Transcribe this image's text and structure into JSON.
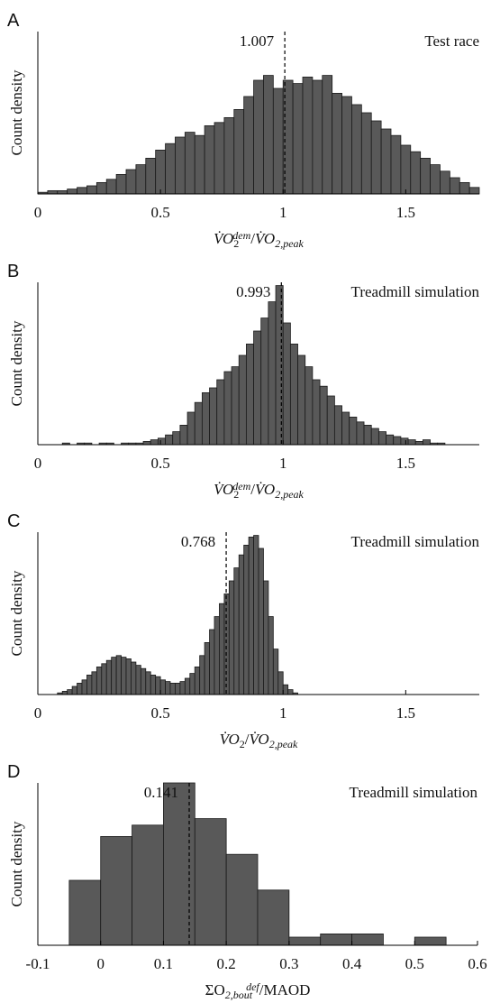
{
  "chart_data": [
    {
      "type": "histogram",
      "panel": "A",
      "note": "Test race",
      "ylabel": "Count density",
      "xlabel": [
        {
          "text": "V̇O",
          "style": "italic"
        },
        {
          "text": "2",
          "shift": "sub"
        },
        {
          "text": "dem",
          "shift": "sup",
          "style": "italic"
        },
        {
          "text": "/"
        },
        {
          "text": "V̇O",
          "style": "italic"
        },
        {
          "text": "2,peak",
          "shift": "sub",
          "style": "italic"
        }
      ],
      "median": 1.007,
      "color": "#595959",
      "xlim": [
        0,
        1.8
      ],
      "ylim": [
        0,
        100
      ],
      "xticks": [
        0,
        0.5,
        1,
        1.5
      ],
      "bins": [
        0,
        0.04,
        0.08,
        0.12,
        0.16,
        0.2,
        0.24,
        0.28,
        0.32,
        0.36,
        0.4,
        0.44,
        0.48,
        0.52,
        0.56,
        0.6,
        0.64,
        0.68,
        0.72,
        0.76,
        0.8,
        0.84,
        0.88,
        0.92,
        0.96,
        1,
        1.04,
        1.08,
        1.12,
        1.16,
        1.2,
        1.24,
        1.28,
        1.32,
        1.36,
        1.4,
        1.44,
        1.48,
        1.52,
        1.56,
        1.6,
        1.64,
        1.68,
        1.72,
        1.76,
        1.8
      ],
      "values": [
        1,
        2,
        2,
        3,
        4,
        5,
        7,
        9,
        12,
        15,
        18,
        22,
        27,
        31,
        35,
        38,
        36,
        42,
        44,
        47,
        52,
        60,
        70,
        73,
        65,
        70,
        68,
        72,
        70,
        73,
        62,
        60,
        55,
        50,
        45,
        40,
        36,
        30,
        26,
        22,
        18,
        14,
        10,
        7,
        4
      ]
    },
    {
      "type": "histogram",
      "panel": "B",
      "note": "Treadmill simulation",
      "ylabel": "Count density",
      "xlabel": [
        {
          "text": "V̇O",
          "style": "italic"
        },
        {
          "text": "2",
          "shift": "sub"
        },
        {
          "text": "dem",
          "shift": "sup",
          "style": "italic"
        },
        {
          "text": "/"
        },
        {
          "text": "V̇O",
          "style": "italic"
        },
        {
          "text": "2,peak",
          "shift": "sub",
          "style": "italic"
        }
      ],
      "median": 0.993,
      "color": "#595959",
      "xlim": [
        0,
        1.8
      ],
      "ylim": [
        0,
        100
      ],
      "xticks": [
        0,
        0.5,
        1,
        1.5
      ],
      "bins": [
        0.1,
        0.13,
        0.16,
        0.19,
        0.22,
        0.25,
        0.28,
        0.31,
        0.34,
        0.37,
        0.4,
        0.43,
        0.46,
        0.49,
        0.52,
        0.55,
        0.58,
        0.61,
        0.64,
        0.67,
        0.7,
        0.73,
        0.76,
        0.79,
        0.82,
        0.85,
        0.88,
        0.91,
        0.94,
        0.97,
        1,
        1.03,
        1.06,
        1.09,
        1.12,
        1.15,
        1.18,
        1.21,
        1.24,
        1.27,
        1.3,
        1.33,
        1.36,
        1.39,
        1.42,
        1.45,
        1.48,
        1.51,
        1.54,
        1.57,
        1.6,
        1.63,
        1.66
      ],
      "values": [
        1,
        0,
        1,
        1,
        0,
        1,
        1,
        0,
        1,
        1,
        1,
        2,
        3,
        4,
        6,
        8,
        12,
        20,
        26,
        32,
        35,
        40,
        45,
        48,
        55,
        62,
        70,
        78,
        88,
        98,
        75,
        62,
        55,
        48,
        40,
        36,
        30,
        24,
        20,
        17,
        14,
        12,
        10,
        8,
        6,
        5,
        4,
        3,
        2,
        3,
        1,
        1
      ]
    },
    {
      "type": "histogram",
      "panel": "C",
      "note": "Treadmill simulation",
      "ylabel": "Count density",
      "xlabel": [
        {
          "text": "V̇O",
          "style": "italic"
        },
        {
          "text": "2",
          "shift": "sub"
        },
        {
          "text": "/"
        },
        {
          "text": "V̇O",
          "style": "italic"
        },
        {
          "text": "2,peak",
          "shift": "sub",
          "style": "italic"
        }
      ],
      "median": 0.768,
      "color": "#595959",
      "xlim": [
        0,
        1.8
      ],
      "ylim": [
        0,
        100
      ],
      "xticks": [
        0,
        0.5,
        1,
        1.5
      ],
      "bins": [
        0.08,
        0.1,
        0.12,
        0.14,
        0.16,
        0.18,
        0.2,
        0.22,
        0.24,
        0.26,
        0.28,
        0.3,
        0.32,
        0.34,
        0.36,
        0.38,
        0.4,
        0.42,
        0.44,
        0.46,
        0.48,
        0.5,
        0.52,
        0.54,
        0.56,
        0.58,
        0.6,
        0.62,
        0.64,
        0.66,
        0.68,
        0.7,
        0.72,
        0.74,
        0.76,
        0.78,
        0.8,
        0.82,
        0.84,
        0.86,
        0.88,
        0.9,
        0.92,
        0.94,
        0.96,
        0.98,
        1,
        1.02,
        1.04,
        1.06
      ],
      "values": [
        1,
        2,
        3,
        5,
        7,
        9,
        12,
        14,
        17,
        19,
        21,
        23,
        24,
        23,
        22,
        20,
        18,
        16,
        14,
        12,
        11,
        9,
        8,
        7,
        7,
        8,
        10,
        13,
        17,
        24,
        32,
        40,
        48,
        56,
        62,
        70,
        78,
        86,
        92,
        97,
        98,
        90,
        70,
        48,
        28,
        14,
        6,
        3,
        1
      ]
    },
    {
      "type": "histogram",
      "panel": "D",
      "note": "Treadmill simulation",
      "ylabel": "Count density",
      "xlabel": [
        {
          "text": "ΣO"
        },
        {
          "text": "2,bout",
          "shift": "sub",
          "style": "italic"
        },
        {
          "text": "def",
          "shift": "sup",
          "style": "italic"
        },
        {
          "text": "/MAOD"
        }
      ],
      "median": 0.141,
      "color": "#595959",
      "xlim": [
        -0.1,
        0.6
      ],
      "ylim": [
        0,
        100
      ],
      "xticks": [
        -0.1,
        0,
        0.1,
        0.2,
        0.3,
        0.4,
        0.5,
        0.6
      ],
      "bins": [
        -0.05,
        0,
        0.05,
        0.1,
        0.15,
        0.2,
        0.25,
        0.3,
        0.35,
        0.4,
        0.45,
        0.5,
        0.55
      ],
      "values": [
        40,
        67,
        74,
        100,
        78,
        56,
        34,
        5,
        7,
        7,
        0,
        5
      ]
    }
  ]
}
